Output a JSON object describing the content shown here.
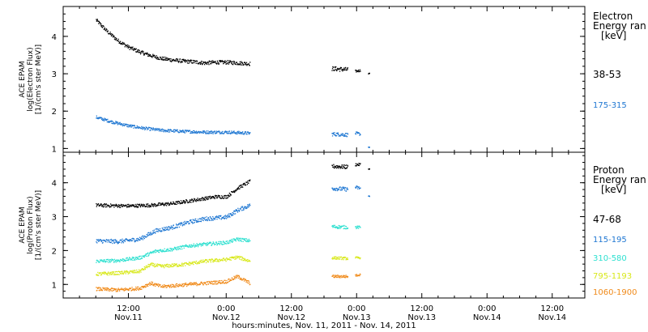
{
  "chart_data": {
    "type": "scatter",
    "xlabel": "hours:minutes, Nov. 11, 2011 - Nov. 14, 2011",
    "x_range_hours": [
      -6,
      90
    ],
    "x_ticks": [
      {
        "hours": 6,
        "time": "12:00",
        "date": "Nov.11"
      },
      {
        "hours": 24,
        "time": "0:00",
        "date": "Nov.12"
      },
      {
        "hours": 36,
        "time": "12:00",
        "date": "Nov.12"
      },
      {
        "hours": 48,
        "time": "0:00",
        "date": "Nov.13"
      },
      {
        "hours": 60,
        "time": "12:00",
        "date": "Nov.13"
      },
      {
        "hours": 72,
        "time": "0:00",
        "date": "Nov.14"
      },
      {
        "hours": 84,
        "time": "12:00",
        "date": "Nov.14"
      }
    ],
    "panels": [
      {
        "id": "electron",
        "ylabel": [
          "ACE EPAM",
          "log(Electron Flux)",
          "[1/(cm's ster MeV)]"
        ],
        "ylim": [
          0.9,
          4.8
        ],
        "yticks": [
          1,
          2,
          3,
          4
        ],
        "legend_title": [
          "Electron",
          "Energy ran",
          "[keV]"
        ],
        "series": [
          {
            "name": "38-53",
            "color": "#000000",
            "segments": [
              {
                "x0": 0,
                "x1": 28.3,
                "pts": [
                  [
                    0,
                    4.45
                  ],
                  [
                    2,
                    4.15
                  ],
                  [
                    4,
                    3.9
                  ],
                  [
                    6,
                    3.72
                  ],
                  [
                    8,
                    3.6
                  ],
                  [
                    10,
                    3.5
                  ],
                  [
                    12,
                    3.42
                  ],
                  [
                    14,
                    3.38
                  ],
                  [
                    16,
                    3.35
                  ],
                  [
                    18,
                    3.33
                  ],
                  [
                    20,
                    3.3
                  ],
                  [
                    22,
                    3.32
                  ],
                  [
                    24,
                    3.32
                  ],
                  [
                    28.3,
                    3.28
                  ]
                ],
                "noise": 0.05
              },
              {
                "x0": 43.4,
                "x1": 46.3,
                "pts": [
                  [
                    43.4,
                    3.15
                  ],
                  [
                    46.3,
                    3.12
                  ]
                ],
                "noise": 0.06
              },
              {
                "x0": 47.7,
                "x1": 48.6,
                "pts": [
                  [
                    47.7,
                    3.08
                  ],
                  [
                    48.6,
                    3.1
                  ]
                ],
                "noise": 0.03
              },
              {
                "x0": 50.1,
                "x1": 50.3,
                "pts": [
                  [
                    50.1,
                    3.02
                  ],
                  [
                    50.3,
                    3.02
                  ]
                ],
                "noise": 0.01
              }
            ]
          },
          {
            "name": "175-315",
            "color": "#1f77d2",
            "segments": [
              {
                "x0": 0,
                "x1": 28.3,
                "pts": [
                  [
                    0,
                    1.85
                  ],
                  [
                    3,
                    1.72
                  ],
                  [
                    6,
                    1.62
                  ],
                  [
                    9,
                    1.55
                  ],
                  [
                    12,
                    1.5
                  ],
                  [
                    16,
                    1.47
                  ],
                  [
                    20,
                    1.45
                  ],
                  [
                    24,
                    1.45
                  ],
                  [
                    28.3,
                    1.42
                  ]
                ],
                "noise": 0.04
              },
              {
                "x0": 43.4,
                "x1": 46.3,
                "pts": [
                  [
                    43.4,
                    1.4
                  ],
                  [
                    46.3,
                    1.38
                  ]
                ],
                "noise": 0.05
              },
              {
                "x0": 47.7,
                "x1": 48.6,
                "pts": [
                  [
                    47.7,
                    1.42
                  ],
                  [
                    48.6,
                    1.4
                  ]
                ],
                "noise": 0.04
              },
              {
                "x0": 50.1,
                "x1": 50.3,
                "pts": [
                  [
                    50.1,
                    1.05
                  ],
                  [
                    50.3,
                    1.05
                  ]
                ],
                "noise": 0.01
              }
            ]
          }
        ]
      },
      {
        "id": "proton",
        "ylabel": [
          "ACE EPAM",
          "log(Proton Flux)",
          "[1/(cm's ster MeV)]"
        ],
        "ylim": [
          0.6,
          4.9
        ],
        "yticks": [
          1,
          2,
          3,
          4
        ],
        "legend_title": [
          "Proton",
          "Energy ran",
          "[keV]"
        ],
        "series": [
          {
            "name": "47-68",
            "color": "#000000",
            "segments": [
              {
                "x0": 0,
                "x1": 28.3,
                "pts": [
                  [
                    0,
                    3.35
                  ],
                  [
                    6,
                    3.33
                  ],
                  [
                    10,
                    3.35
                  ],
                  [
                    14,
                    3.4
                  ],
                  [
                    18,
                    3.5
                  ],
                  [
                    22,
                    3.6
                  ],
                  [
                    24,
                    3.6
                  ],
                  [
                    26,
                    3.85
                  ],
                  [
                    28.3,
                    4.05
                  ]
                ],
                "noise": 0.05
              },
              {
                "x0": 43.4,
                "x1": 46.3,
                "pts": [
                  [
                    43.4,
                    4.5
                  ],
                  [
                    46.3,
                    4.48
                  ]
                ],
                "noise": 0.06
              },
              {
                "x0": 47.7,
                "x1": 48.6,
                "pts": [
                  [
                    47.7,
                    4.55
                  ],
                  [
                    48.6,
                    4.55
                  ]
                ],
                "noise": 0.04
              },
              {
                "x0": 50.1,
                "x1": 50.3,
                "pts": [
                  [
                    50.1,
                    4.42
                  ],
                  [
                    50.3,
                    4.42
                  ]
                ],
                "noise": 0.01
              }
            ]
          },
          {
            "name": "115-195",
            "color": "#1f77d2",
            "segments": [
              {
                "x0": 0,
                "x1": 28.3,
                "pts": [
                  [
                    0,
                    2.3
                  ],
                  [
                    4,
                    2.28
                  ],
                  [
                    8,
                    2.35
                  ],
                  [
                    11,
                    2.6
                  ],
                  [
                    14,
                    2.7
                  ],
                  [
                    17,
                    2.85
                  ],
                  [
                    20,
                    2.95
                  ],
                  [
                    24,
                    3.0
                  ],
                  [
                    26,
                    3.2
                  ],
                  [
                    28.3,
                    3.35
                  ]
                ],
                "noise": 0.06
              },
              {
                "x0": 43.4,
                "x1": 46.3,
                "pts": [
                  [
                    43.4,
                    3.85
                  ],
                  [
                    46.3,
                    3.82
                  ]
                ],
                "noise": 0.06
              },
              {
                "x0": 47.7,
                "x1": 48.6,
                "pts": [
                  [
                    47.7,
                    3.88
                  ],
                  [
                    48.6,
                    3.85
                  ]
                ],
                "noise": 0.05
              },
              {
                "x0": 50.1,
                "x1": 50.3,
                "pts": [
                  [
                    50.1,
                    3.62
                  ],
                  [
                    50.3,
                    3.62
                  ]
                ],
                "noise": 0.01
              }
            ]
          },
          {
            "name": "310-580",
            "color": "#2ee0d0",
            "segments": [
              {
                "x0": 0,
                "x1": 28.3,
                "pts": [
                  [
                    0,
                    1.7
                  ],
                  [
                    4,
                    1.72
                  ],
                  [
                    8,
                    1.8
                  ],
                  [
                    11,
                    2.0
                  ],
                  [
                    14,
                    2.05
                  ],
                  [
                    17,
                    2.15
                  ],
                  [
                    20,
                    2.2
                  ],
                  [
                    24,
                    2.25
                  ],
                  [
                    26,
                    2.35
                  ],
                  [
                    28.3,
                    2.3
                  ]
                ],
                "noise": 0.05
              },
              {
                "x0": 43.4,
                "x1": 46.3,
                "pts": [
                  [
                    43.4,
                    2.72
                  ],
                  [
                    46.3,
                    2.7
                  ]
                ],
                "noise": 0.05
              },
              {
                "x0": 47.7,
                "x1": 48.6,
                "pts": [
                  [
                    47.7,
                    2.7
                  ],
                  [
                    48.6,
                    2.7
                  ]
                ],
                "noise": 0.04
              }
            ]
          },
          {
            "name": "795-1193",
            "color": "#d8e81a",
            "segments": [
              {
                "x0": 0,
                "x1": 28.3,
                "pts": [
                  [
                    0,
                    1.32
                  ],
                  [
                    4,
                    1.35
                  ],
                  [
                    8,
                    1.4
                  ],
                  [
                    10,
                    1.6
                  ],
                  [
                    12,
                    1.55
                  ],
                  [
                    16,
                    1.6
                  ],
                  [
                    20,
                    1.7
                  ],
                  [
                    24,
                    1.75
                  ],
                  [
                    26,
                    1.82
                  ],
                  [
                    28.3,
                    1.7
                  ]
                ],
                "noise": 0.05
              },
              {
                "x0": 43.4,
                "x1": 46.3,
                "pts": [
                  [
                    43.4,
                    1.8
                  ],
                  [
                    46.3,
                    1.78
                  ]
                ],
                "noise": 0.04
              },
              {
                "x0": 47.7,
                "x1": 48.6,
                "pts": [
                  [
                    47.7,
                    1.8
                  ],
                  [
                    48.6,
                    1.8
                  ]
                ],
                "noise": 0.03
              }
            ]
          },
          {
            "name": "1060-1900",
            "color": "#f08a1a",
            "segments": [
              {
                "x0": 0,
                "x1": 28.3,
                "pts": [
                  [
                    0,
                    0.88
                  ],
                  [
                    4,
                    0.85
                  ],
                  [
                    8,
                    0.9
                  ],
                  [
                    10,
                    1.05
                  ],
                  [
                    12,
                    0.95
                  ],
                  [
                    16,
                    1.0
                  ],
                  [
                    20,
                    1.05
                  ],
                  [
                    24,
                    1.1
                  ],
                  [
                    26,
                    1.25
                  ],
                  [
                    28.3,
                    1.05
                  ]
                ],
                "noise": 0.05
              },
              {
                "x0": 43.4,
                "x1": 46.3,
                "pts": [
                  [
                    43.4,
                    1.25
                  ],
                  [
                    46.3,
                    1.25
                  ]
                ],
                "noise": 0.04
              },
              {
                "x0": 47.7,
                "x1": 48.6,
                "pts": [
                  [
                    47.7,
                    1.28
                  ],
                  [
                    48.6,
                    1.3
                  ]
                ],
                "noise": 0.03
              }
            ]
          }
        ]
      }
    ]
  }
}
